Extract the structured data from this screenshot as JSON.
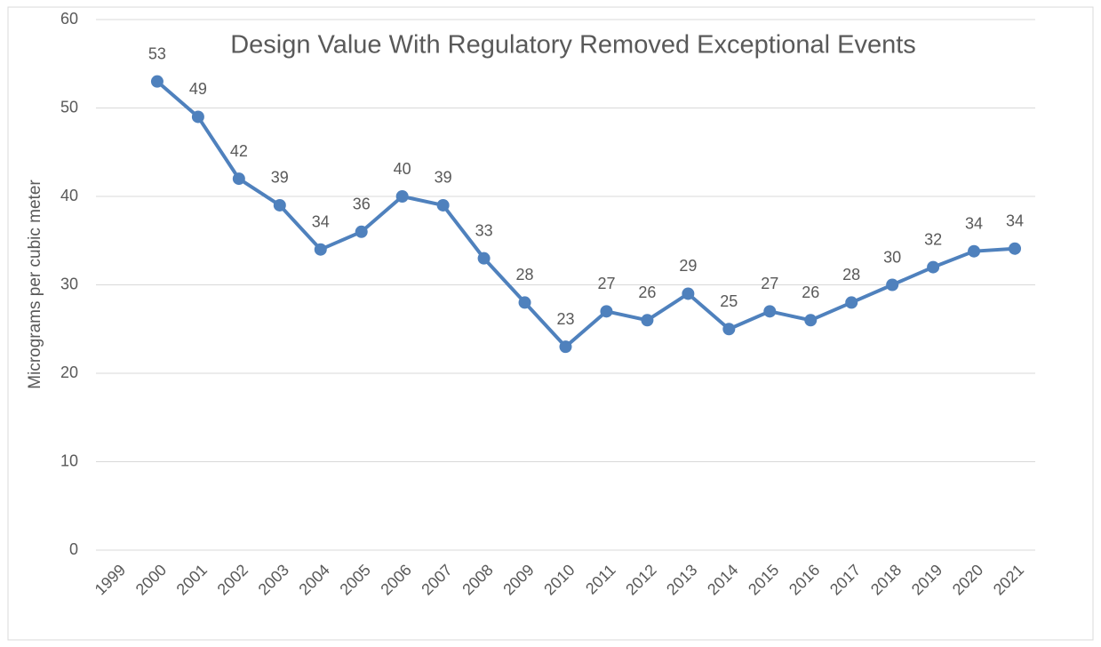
{
  "chart_data": {
    "type": "line",
    "title": "Design Value With Regulatory Removed Exceptional Events",
    "y_label": "Micrograms per cubic meter",
    "categories": [
      "1999",
      "2000",
      "2001",
      "2002",
      "2003",
      "2004",
      "2005",
      "2006",
      "2007",
      "2008",
      "2009",
      "2010",
      "2011",
      "2012",
      "2013",
      "2014",
      "2015",
      "2016",
      "2017",
      "2018",
      "2019",
      "2020",
      "2021"
    ],
    "series": [
      {
        "name": "Design Value",
        "color": "#4f81bd",
        "values": [
          null,
          53,
          49,
          42,
          39,
          34,
          36,
          40,
          39,
          33,
          28,
          23,
          27,
          26,
          29,
          25,
          27,
          26,
          28,
          30,
          32,
          33.8,
          34.1
        ],
        "value_labels": [
          null,
          "53",
          "49",
          "42",
          "39",
          "34",
          "36",
          "40",
          "39",
          "33",
          "28",
          "23",
          "27",
          "26",
          "29",
          "25",
          "27",
          "26",
          "28",
          "30",
          "32",
          "34",
          "34"
        ]
      }
    ],
    "ylim": [
      0,
      60
    ],
    "yticks": [
      0,
      10,
      20,
      30,
      40,
      50,
      60
    ],
    "grid": true
  }
}
